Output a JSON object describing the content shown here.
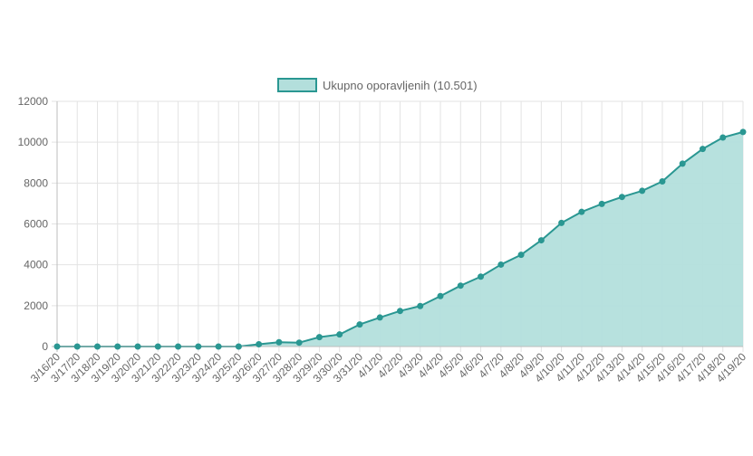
{
  "chart_data": {
    "type": "area",
    "legend": {
      "position": "top-center",
      "label": "Ukupno oporavljenih (10.501)"
    },
    "colors": {
      "line": "#2a9792",
      "fill": "#b3dfdc",
      "grid": "#e3e3e3",
      "axis": "#bdbdbd",
      "text": "#666666"
    },
    "grid": true,
    "ylim": [
      0,
      12000
    ],
    "yticks": [
      0,
      2000,
      4000,
      6000,
      8000,
      10000,
      12000
    ],
    "yticks_labels": [
      "0",
      "2000",
      "4000",
      "6000",
      "8000",
      "10000",
      "12000"
    ],
    "categories": [
      "3/16/20",
      "3/17/20",
      "3/18/20",
      "3/19/20",
      "3/20/20",
      "3/21/20",
      "3/22/20",
      "3/23/20",
      "3/24/20",
      "3/25/20",
      "3/26/20",
      "3/27/20",
      "3/28/20",
      "3/29/20",
      "3/30/20",
      "3/31/20",
      "4/1/20",
      "4/2/20",
      "4/3/20",
      "4/4/20",
      "4/5/20",
      "4/6/20",
      "4/7/20",
      "4/8/20",
      "4/9/20",
      "4/10/20",
      "4/11/20",
      "4/12/20",
      "4/13/20",
      "4/14/20",
      "4/15/20",
      "4/16/20",
      "4/17/20",
      "4/18/20",
      "4/19/20"
    ],
    "series": [
      {
        "name": "Ukupno oporavljenih (10.501)",
        "values": [
          0,
          0,
          0,
          0,
          0,
          0,
          0,
          0,
          0,
          0,
          110,
          210,
          190,
          460,
          590,
          1080,
          1420,
          1740,
          1980,
          2470,
          2980,
          3420,
          4010,
          4490,
          5200,
          6050,
          6590,
          6980,
          7320,
          7620,
          8080,
          8950,
          9670,
          10230,
          10501
        ]
      }
    ]
  }
}
